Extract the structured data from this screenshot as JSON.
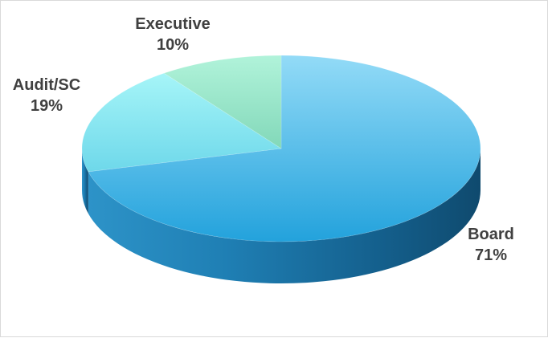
{
  "chart_data": {
    "type": "pie",
    "style": "3d",
    "categories": [
      "Board",
      "Audit/SC",
      "Executive"
    ],
    "values": [
      71,
      19,
      10
    ],
    "value_labels": [
      "71%",
      "19%",
      "10%"
    ],
    "colors": [
      "#2aa3d9",
      "#7fe6ee",
      "#8fe3c0"
    ],
    "title": "",
    "legend": "none",
    "data_labels": "outside"
  }
}
